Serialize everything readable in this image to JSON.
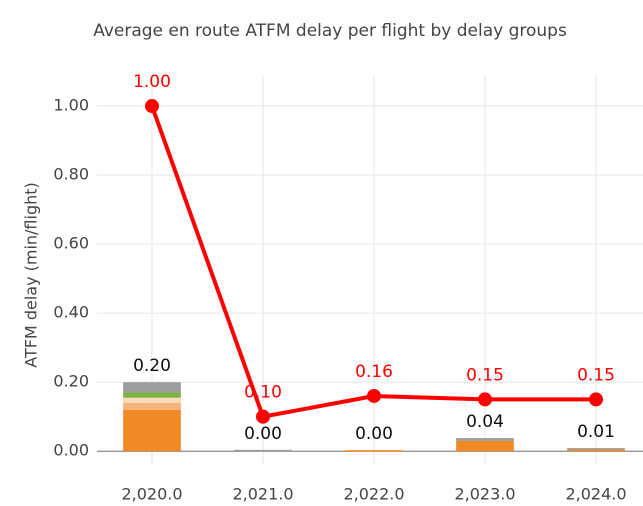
{
  "chart_data": {
    "type": "bar",
    "stacked": true,
    "title": "Average en route ATFM delay per flight by delay groups",
    "ylabel": "ATFM delay (min/flight)",
    "categories": [
      "2,020.0",
      "2,021.0",
      "2,022.0",
      "2,023.0",
      "2,024.0"
    ],
    "ylim": [
      -0.04,
      1.09
    ],
    "yticks": [
      {
        "value": 0,
        "label": "0.00"
      },
      {
        "value": 0.2,
        "label": "0.20"
      },
      {
        "value": 0.4,
        "label": "0.40"
      },
      {
        "value": 0.6,
        "label": "0.60"
      },
      {
        "value": 0.8,
        "label": "0.80"
      },
      {
        "value": 1,
        "label": "1.00"
      }
    ],
    "grid": true,
    "series": [
      {
        "type": "bar",
        "color": "#f08a24",
        "values": [
          0.12,
          0,
          0.003,
          0.03,
          0.006
        ]
      },
      {
        "type": "bar",
        "color": "#f5b57a",
        "values": [
          0.02,
          0,
          0,
          0,
          0
        ]
      },
      {
        "type": "bar",
        "color": "#fad9b8",
        "values": [
          0.015,
          0,
          0,
          0,
          0
        ]
      },
      {
        "type": "bar",
        "color": "#7cb342",
        "values": [
          0.015,
          0,
          0,
          0,
          0
        ]
      },
      {
        "type": "bar",
        "color": "#9e9e9e",
        "values": [
          0.03,
          0.004,
          0,
          0.008,
          0.003
        ]
      },
      {
        "type": "line",
        "color": "#ff0000",
        "values": [
          1.0,
          0.1,
          0.16,
          0.15,
          0.15
        ],
        "value_labels": [
          "1.00",
          "0.10",
          "0.16",
          "0.15",
          "0.15"
        ]
      }
    ],
    "total_labels": [
      "0.20",
      "0.00",
      "0.00",
      "0.04",
      "0.01"
    ]
  }
}
